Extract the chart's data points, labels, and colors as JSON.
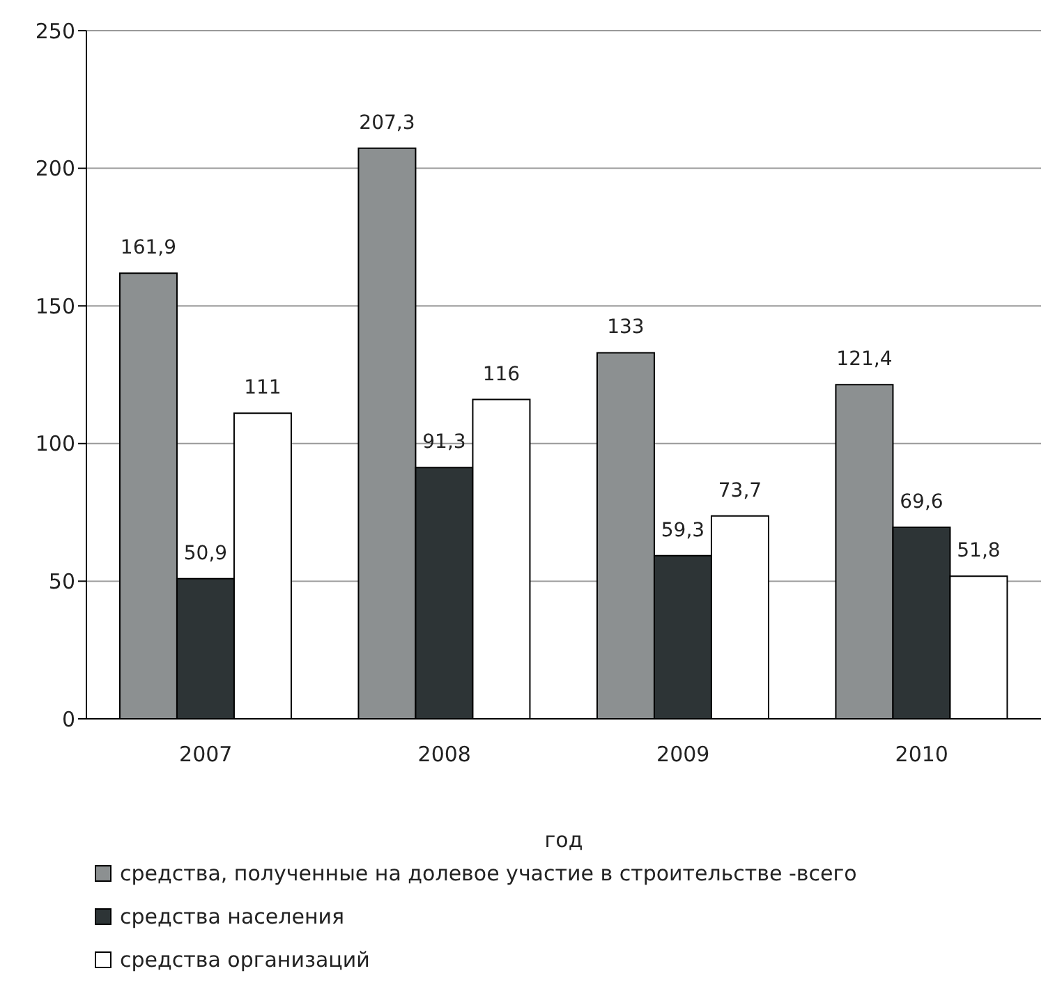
{
  "chart_data": {
    "type": "bar",
    "xlabel": "год",
    "categories": [
      "2007",
      "2008",
      "2009",
      "2010"
    ],
    "series": [
      {
        "name": "средства, полученные на долевое участие в строительстве -всего",
        "color": "#8c9091",
        "values": [
          161.9,
          207.3,
          133,
          121.4
        ],
        "value_labels": [
          "161,9",
          "207,3",
          "133",
          "121,4"
        ]
      },
      {
        "name": "средства населения",
        "color": "#2d3436",
        "values": [
          50.9,
          91.3,
          59.3,
          69.6
        ],
        "value_labels": [
          "50,9",
          "91,3",
          "59,3",
          "69,6"
        ]
      },
      {
        "name": "средства организаций",
        "color": "#ffffff",
        "values": [
          111,
          116,
          73.7,
          51.8
        ],
        "value_labels": [
          "111",
          "116",
          "73,7",
          "51,8"
        ]
      }
    ],
    "ylim": [
      0,
      250
    ],
    "yticks": [
      0,
      50,
      100,
      150,
      200,
      250
    ],
    "grid": "y",
    "legend": "bottom"
  }
}
